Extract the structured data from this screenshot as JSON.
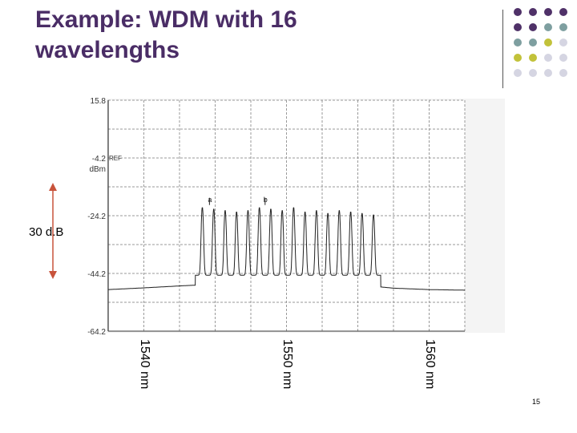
{
  "slide": {
    "title_line1": "Example:  WDM with 16",
    "title_line2": "wavelengths",
    "annotation": "30 d.B",
    "page_number": "15"
  },
  "palette": {
    "purple": "#4f3168",
    "teal": "#7e9fa0",
    "olive": "#c2c23a",
    "lavender": "#d5d5e2",
    "title": "#4a2d66",
    "arrow": "#c8533b"
  },
  "dot_grid": [
    [
      "purple",
      "purple",
      "purple",
      "purple"
    ],
    [
      "purple",
      "purple",
      "teal",
      "teal"
    ],
    [
      "teal",
      "teal",
      "olive",
      "lavender"
    ],
    [
      "olive",
      "olive",
      "lavender",
      "lavender"
    ],
    [
      "lavender",
      "lavender",
      "lavender",
      "lavender"
    ]
  ],
  "chart_data": {
    "type": "line",
    "ref_label": "REF",
    "unit_label": "dBm",
    "y_ticks": [
      "15.8",
      "-4.2",
      "-24.2",
      "-44.2",
      "-64.2"
    ],
    "ylim": [
      -64.2,
      15.8
    ],
    "y_grid_step": 10,
    "xlim": [
      1537.5,
      1562.5
    ],
    "x_grid_divisions": 10,
    "x_labels": [
      {
        "value": 1540,
        "label": "1540 nm"
      },
      {
        "value": 1550,
        "label": "1550 nm"
      },
      {
        "value": 1560,
        "label": "1560 nm"
      }
    ],
    "marker_labels": [
      {
        "value": 1544.6,
        "label": "a"
      },
      {
        "value": 1548.5,
        "label": "b"
      }
    ],
    "series": [
      {
        "noise_floor": [
          [
            1537.5,
            -49.8
          ],
          [
            1540,
            -49.2
          ],
          [
            1543,
            -48.4
          ],
          [
            1544,
            -48.2
          ],
          [
            1546,
            -47.8
          ],
          [
            1548,
            -47.5
          ],
          [
            1550,
            -47.5
          ],
          [
            1552,
            -47.8
          ],
          [
            1554,
            -48.2
          ],
          [
            1556,
            -48.6
          ],
          [
            1557.5,
            -49.3
          ],
          [
            1560,
            -49.8
          ],
          [
            1562.5,
            -50.0
          ]
        ],
        "peaks_nm": [
          1544.1,
          1544.9,
          1545.7,
          1546.5,
          1547.3,
          1548.1,
          1548.9,
          1549.7,
          1550.5,
          1551.3,
          1552.1,
          1552.9,
          1553.7,
          1554.5,
          1555.3,
          1556.1
        ],
        "peak_dbm": [
          -21.5,
          -22.0,
          -22.5,
          -23.0,
          -22.5,
          -21.5,
          -22.0,
          -22.5,
          -21.5,
          -23.0,
          -22.5,
          -23.5,
          -22.5,
          -23.0,
          -23.5,
          -24.0
        ],
        "channel_floor_dbm": -44.8
      }
    ],
    "grid": true,
    "title": "",
    "xlabel": "",
    "ylabel": ""
  }
}
